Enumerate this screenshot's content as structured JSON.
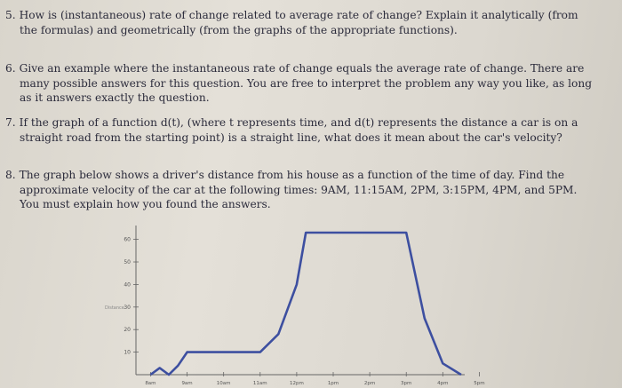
{
  "questions": [
    {
      "number": "5.",
      "text": "How is (instantaneous) rate of change related to average rate of change? Explain it analytically (from the formulas) and geometrically (from the graphs of the appropriate functions)."
    },
    {
      "number": "6.",
      "text": "Give an example where the instantaneous rate of change equals the average rate of change. There are many possible answers for this question. You are free to interpret the problem any way you like, as long as it answers exactly the question."
    },
    {
      "number": "7.",
      "text": "If the graph of a function d(t), (where t represents time, and d(t) represents the distance a car is on a straight road from the starting point) is a straight line, what does it mean about the car's velocity?"
    },
    {
      "number": "8.",
      "text": "The graph below shows a driver's distance from his house as a function of the time of day. Find the approximate velocity of the car at the following times: 9AM, 11:15AM, 2PM, 3:15PM, 4PM, and 5PM. You must explain how you found the answers."
    }
  ],
  "chart_data": {
    "type": "line",
    "ylabel": "Distance",
    "yticks": [
      "10",
      "20",
      "30",
      "40",
      "50",
      "60"
    ],
    "xticks": [
      "8am",
      "9am",
      "10am",
      "11am",
      "12pm",
      "1pm",
      "2pm",
      "3pm",
      "4pm",
      "5pm"
    ],
    "series": [
      {
        "x": [
          8.0,
          8.25,
          8.5,
          8.75,
          9.0,
          11.0,
          11.5,
          12.0,
          12.25,
          12.5,
          13.0,
          14.0,
          15.0,
          15.5,
          16.0,
          16.5
        ],
        "y": [
          0,
          3,
          0,
          4,
          10,
          10,
          18,
          40,
          63,
          63,
          63,
          63,
          63,
          25,
          5,
          0
        ]
      }
    ],
    "line_color": "#3d4fa0",
    "xlim": [
      7.6,
      16.6
    ],
    "ylim": [
      0,
      63
    ]
  }
}
